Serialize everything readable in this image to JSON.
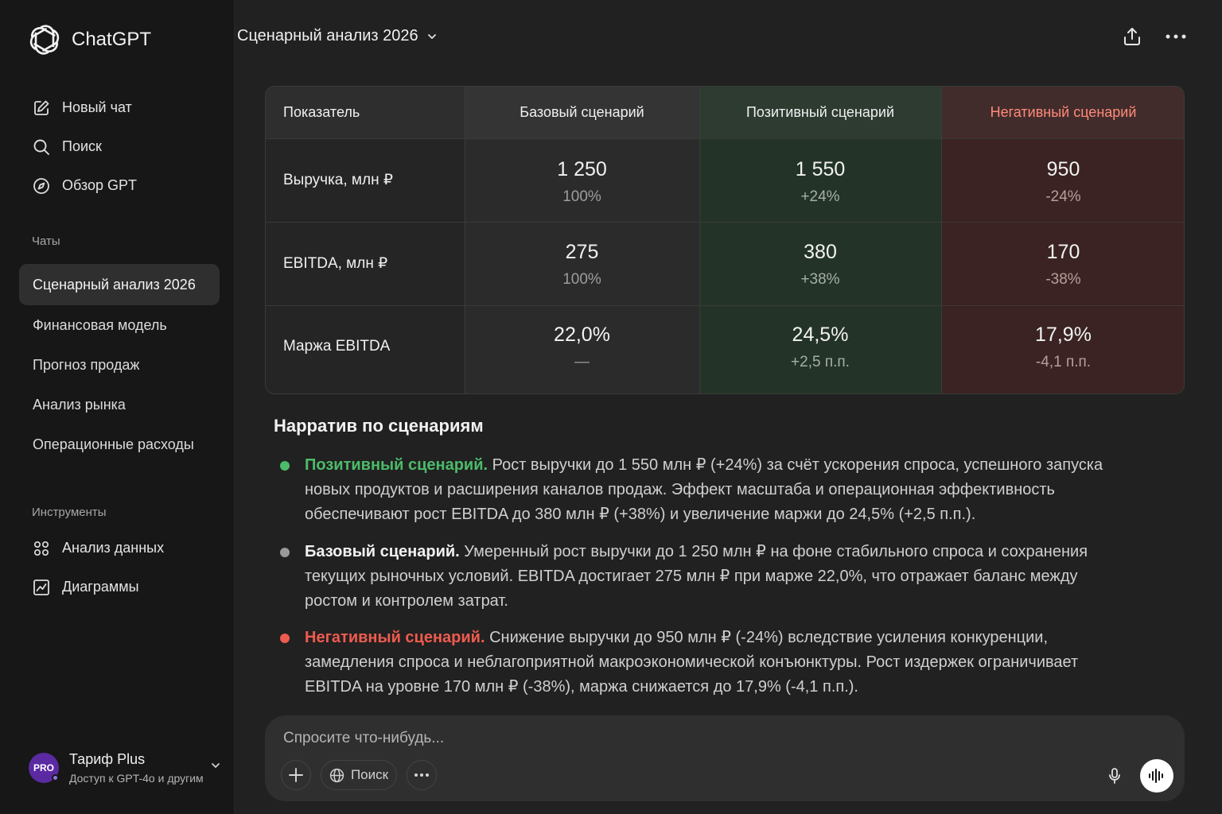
{
  "app": {
    "name": "ChatGPT"
  },
  "sidebar": {
    "nav": [
      {
        "label": "Новый чат",
        "icon": "edit-icon"
      },
      {
        "label": "Поиск",
        "icon": "search-icon"
      },
      {
        "label": "Обзор GPT",
        "icon": "compass-icon"
      }
    ],
    "chats_label": "Чаты",
    "chats": [
      {
        "label": "Сценарный анализ 2026",
        "active": true
      },
      {
        "label": "Финансовая модель"
      },
      {
        "label": "Прогноз продаж"
      },
      {
        "label": "Анализ рынка"
      },
      {
        "label": "Операционные расходы"
      }
    ],
    "tools_label": "Инструменты",
    "tools": [
      {
        "label": "Анализ данных",
        "icon": "grid-icon"
      },
      {
        "label": "Диаграммы",
        "icon": "chart-icon"
      }
    ],
    "plan": {
      "badge": "PRO",
      "title": "Тариф Plus",
      "subtitle": "Доступ к GPT-4o и другим"
    }
  },
  "header": {
    "title": "Сценарный анализ 2026"
  },
  "table": {
    "headers": [
      "Показатель",
      "Базовый сценарий",
      "Позитивный сценарий",
      "Негативный сценарий"
    ],
    "rows": [
      {
        "label": "Выручка, млн ₽",
        "cells": [
          {
            "value": "1 250",
            "sub": "100%"
          },
          {
            "value": "1 550",
            "sub": "+24%"
          },
          {
            "value": "950",
            "sub": "-24%"
          }
        ]
      },
      {
        "label": "EBITDA, млн ₽",
        "cells": [
          {
            "value": "275",
            "sub": "100%"
          },
          {
            "value": "380",
            "sub": "+38%"
          },
          {
            "value": "170",
            "sub": "-38%"
          }
        ]
      },
      {
        "label": "Маржа EBITDA",
        "cells": [
          {
            "value": "22,0%",
            "sub": "—"
          },
          {
            "value": "24,5%",
            "sub": "+2,5 п.п."
          },
          {
            "value": "17,9%",
            "sub": "-4,1 п.п."
          }
        ]
      }
    ]
  },
  "narrative": {
    "title": "Нарратив по сценариям",
    "items": [
      {
        "lead": "Позитивный сценарий.",
        "color": "#4cbb6a",
        "text": " Рост выручки до 1 550 млн ₽ (+24%) за счёт ускорения спроса, успешного запуска новых продуктов и расширения каналов продаж. Эффект масштаба и операционная эффективность обеспечивают рост EBITDA до 380 млн ₽ (+38%) и увеличение маржи до 24,5% (+2,5 п.п.)."
      },
      {
        "lead": "Базовый сценарий.",
        "color": "#f2f2f2",
        "dot": "#9a9a9a",
        "text": " Умеренный рост выручки до 1 250 млн ₽ на фоне стабильного спроса и сохранения текущих рыночных условий. EBITDA достигает 275 млн ₽ при марже 22,0%, что отражает баланс между ростом и контролем затрат."
      },
      {
        "lead": "Негативный сценарий.",
        "color": "#ef5b4f",
        "text": " Снижение выручки до 950 млн ₽ (-24%) вследствие усиления конкуренции, замедления спроса и неблагоприятной макроэкономической конъюнктуры. Рост издержек ограничивает EBITDA на уровне 170 млн ₽ (-38%), маржа снижается до 17,9% (-4,1 п.п.)."
      }
    ]
  },
  "composer": {
    "placeholder": "Спросите что-нибудь...",
    "search_label": "Поиск"
  },
  "colors": {
    "positive": "#4cbb6a",
    "negative": "#ef5b4f",
    "negative_header": "#ff8a7a"
  }
}
